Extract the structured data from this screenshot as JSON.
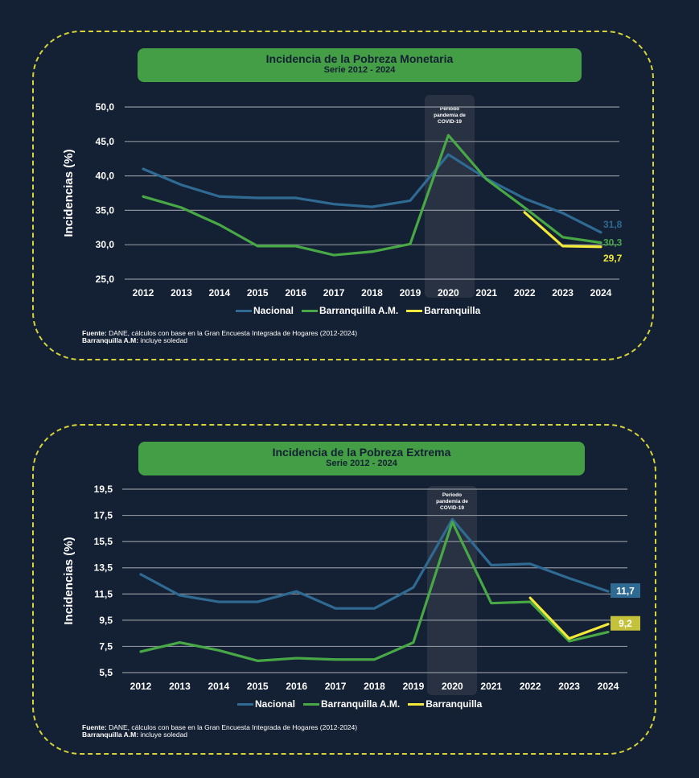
{
  "colors": {
    "background": "#142033",
    "border": "#d6d43a",
    "banner": "#439e45",
    "nacional": "#2f6a93",
    "barranquilla_am": "#48a846",
    "barranquilla": "#f2e93a",
    "grid": "#8c929c",
    "covid_band": "#2a3444"
  },
  "panels": [
    {
      "banner": {
        "title": "Incidencia de la Pobreza Monetaria",
        "subtitle": "Serie 2012 - 2024"
      },
      "legend": [
        "Nacional",
        "Barranquilla A.M.",
        "Barranquilla"
      ],
      "source": {
        "label": "Fuente:",
        "text": " DANE, cálculos con base en la Gran Encuesta Integrada de Hogares (2012-2024)",
        "note_label": "Barranquilla A.M:",
        "note_text": " incluye soledad"
      }
    },
    {
      "banner": {
        "title": "Incidencia de la Pobreza Extrema",
        "subtitle": "Serie 2012 - 2024"
      },
      "legend": [
        "Nacional",
        "Barranquilla A.M.",
        "Barranquilla"
      ],
      "source": {
        "label": "Fuente:",
        "text": " DANE, cálculos con base en la Gran Encuesta Integrada de Hogares (2012-2024)",
        "note_label": "Barranquilla A.M:",
        "note_text": " incluye soledad"
      }
    }
  ],
  "chart_data": [
    {
      "type": "line",
      "title": "Incidencia de la Pobreza Monetaria",
      "subtitle": "Serie 2012 - 2024",
      "ylabel": "Incidencias (%)",
      "xlabel": "",
      "x": [
        "2012",
        "2013",
        "2014",
        "2015",
        "2016",
        "2017",
        "2018",
        "2019",
        "2020",
        "2021",
        "2022",
        "2023",
        "2024"
      ],
      "yticks": [
        "50,0",
        "45,0",
        "40,0",
        "35,0",
        "30,0",
        "25,0"
      ],
      "ytick_values": [
        50,
        45,
        40,
        35,
        30,
        25
      ],
      "ylim": [
        25,
        50
      ],
      "grid": true,
      "legend_position": "bottom",
      "annotation": {
        "text": [
          "Periodo",
          "pandemia de",
          "COVID-19"
        ],
        "x": "2020"
      },
      "series": [
        {
          "name": "Nacional",
          "key": "nacional",
          "values": [
            41.0,
            38.7,
            37.0,
            36.8,
            36.8,
            35.9,
            35.5,
            36.4,
            43.1,
            39.6,
            36.7,
            34.6,
            31.8
          ],
          "end_label": "31,8",
          "end_style": "text"
        },
        {
          "name": "Barranquilla A.M.",
          "key": "barranquilla_am",
          "values": [
            37.0,
            35.4,
            32.9,
            29.8,
            29.8,
            28.5,
            29.0,
            30.1,
            45.9,
            39.5,
            35.4,
            31.1,
            30.3
          ],
          "end_label": "30,3",
          "end_style": "text"
        },
        {
          "name": "Barranquilla",
          "key": "barranquilla",
          "values": [
            null,
            null,
            null,
            null,
            null,
            null,
            null,
            null,
            null,
            null,
            34.7,
            29.8,
            29.7
          ],
          "end_label": "29,7",
          "end_style": "text"
        }
      ]
    },
    {
      "type": "line",
      "title": "Incidencia de la Pobreza Extrema",
      "subtitle": "Serie 2012 - 2024",
      "ylabel": "Incidencias (%)",
      "xlabel": "",
      "x": [
        "2012",
        "2013",
        "2014",
        "2015",
        "2016",
        "2017",
        "2018",
        "2019",
        "2020",
        "2021",
        "2022",
        "2023",
        "2024"
      ],
      "yticks": [
        "19,5",
        "17,5",
        "15,5",
        "13,5",
        "11,5",
        "9,5",
        "7,5",
        "5,5"
      ],
      "ytick_values": [
        19.5,
        17.5,
        15.5,
        13.5,
        11.5,
        9.5,
        7.5,
        5.5
      ],
      "ylim": [
        5.5,
        19.5
      ],
      "grid": true,
      "legend_position": "bottom",
      "annotation": {
        "text": [
          "Periodo",
          "pandemia de",
          "COVID-19"
        ],
        "x": "2020"
      },
      "series": [
        {
          "name": "Nacional",
          "key": "nacional",
          "values": [
            13.0,
            11.4,
            10.9,
            10.9,
            11.7,
            10.4,
            10.4,
            12.0,
            17.2,
            13.7,
            13.8,
            12.7,
            11.7
          ],
          "end_label": "11,7",
          "end_style": "box"
        },
        {
          "name": "Barranquilla A.M.",
          "key": "barranquilla_am",
          "values": [
            7.1,
            7.8,
            7.2,
            6.4,
            6.6,
            6.5,
            6.5,
            7.8,
            17.0,
            10.8,
            10.9,
            7.9,
            8.6
          ],
          "end_label": null,
          "end_style": "none"
        },
        {
          "name": "Barranquilla",
          "key": "barranquilla",
          "values": [
            null,
            null,
            null,
            null,
            null,
            null,
            null,
            null,
            null,
            null,
            11.2,
            8.1,
            9.2
          ],
          "end_label": "9,2",
          "end_style": "box"
        }
      ]
    }
  ]
}
